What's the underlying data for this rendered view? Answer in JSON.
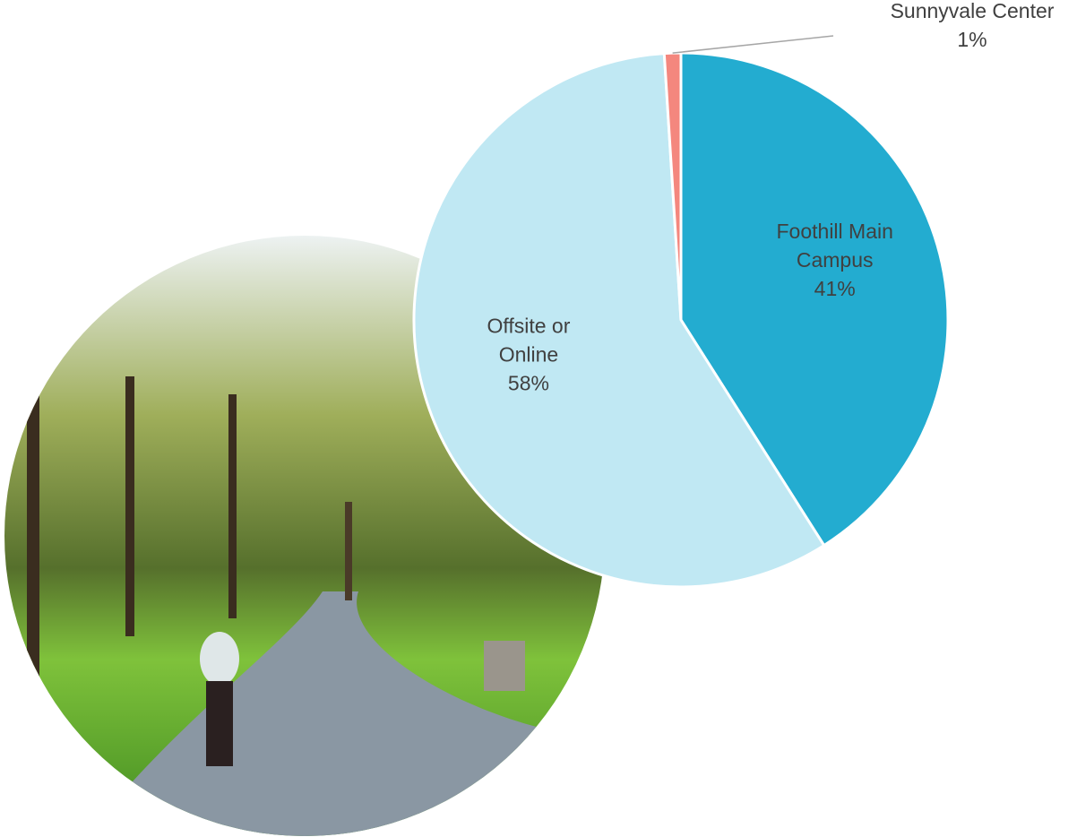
{
  "chart_data": {
    "type": "pie",
    "categories": [
      "Foothill Main Campus",
      "Offsite or Online",
      "Sunnyvale Center"
    ],
    "values": [
      41,
      58,
      1
    ],
    "value_labels": [
      "41%",
      "58%",
      "1%"
    ],
    "colors": [
      "#23acd0",
      "#c0e8f3",
      "#f4877e"
    ]
  }
}
